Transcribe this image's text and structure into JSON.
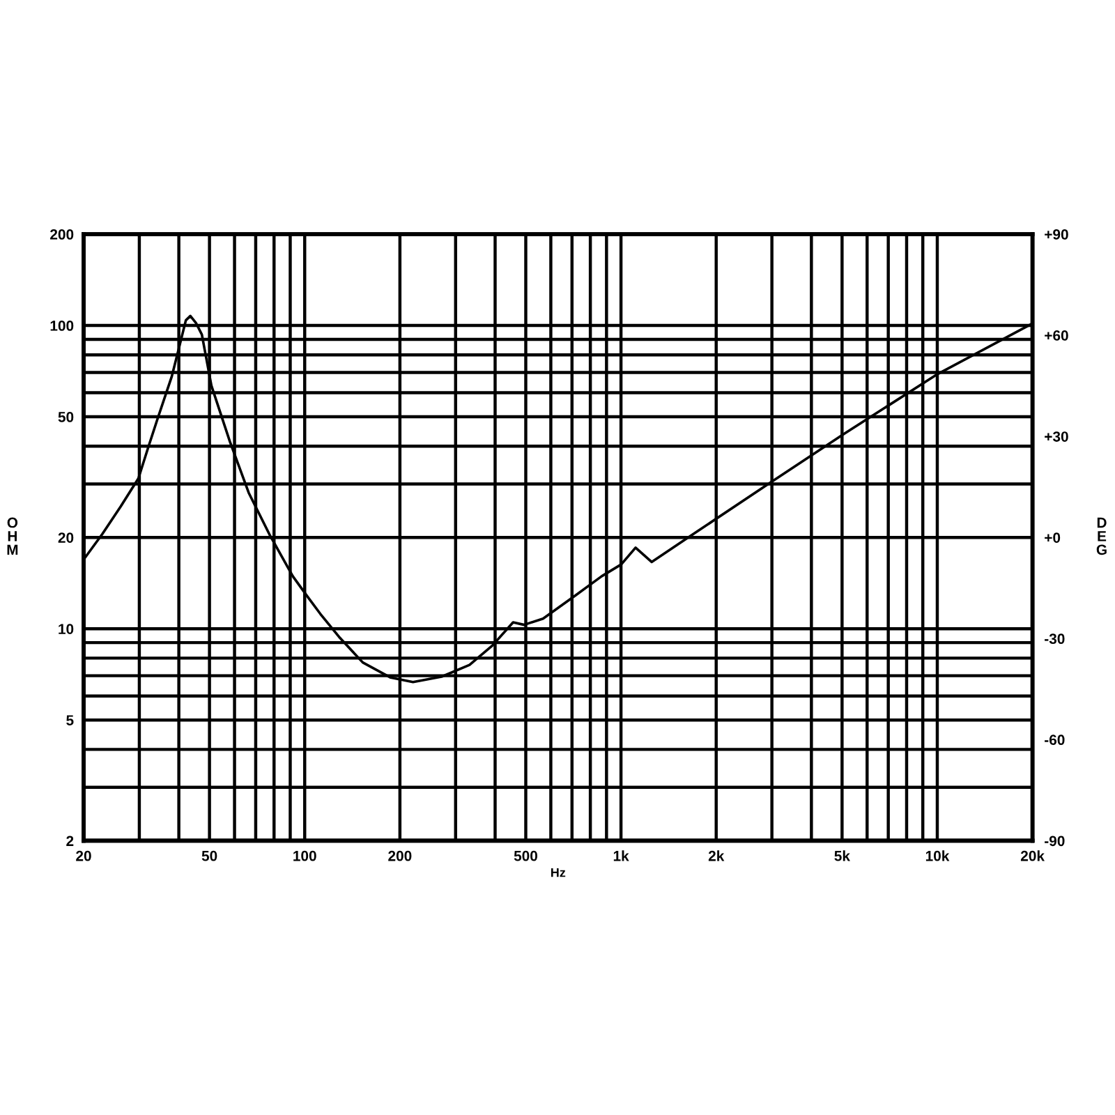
{
  "chart_data": {
    "type": "line",
    "xlabel": "Hz",
    "ylabel": "OHM",
    "y2label": "DEG",
    "log": "xy",
    "xlim": [
      20,
      20000
    ],
    "ylim": [
      2,
      200
    ],
    "y2lim": [
      -90,
      90
    ],
    "xticks": [
      20,
      {
        "value": 30,
        "label": null
      },
      {
        "value": 40,
        "label": null
      },
      50,
      {
        "value": 60,
        "label": null
      },
      {
        "value": 70,
        "label": null
      },
      {
        "value": 80,
        "label": null
      },
      {
        "value": 90,
        "label": null
      },
      100,
      200,
      {
        "value": 300,
        "label": null
      },
      {
        "value": 400,
        "label": null
      },
      500,
      {
        "value": 600,
        "label": null
      },
      {
        "value": 700,
        "label": null
      },
      {
        "value": 800,
        "label": null
      },
      {
        "value": 900,
        "label": null
      },
      {
        "value": 1000,
        "label": "1k"
      },
      {
        "value": 2000,
        "label": "2k"
      },
      {
        "value": 3000,
        "label": null
      },
      {
        "value": 4000,
        "label": null
      },
      {
        "value": 5000,
        "label": "5k"
      },
      {
        "value": 6000,
        "label": null
      },
      {
        "value": 7000,
        "label": null
      },
      {
        "value": 8000,
        "label": null
      },
      {
        "value": 9000,
        "label": null
      },
      {
        "value": 10000,
        "label": "10k"
      },
      {
        "value": 20000,
        "label": "20k"
      }
    ],
    "yticks": [
      2,
      {
        "value": 3,
        "label": null
      },
      {
        "value": 4,
        "label": null
      },
      5,
      {
        "value": 6,
        "label": null
      },
      {
        "value": 7,
        "label": null
      },
      {
        "value": 8,
        "label": null
      },
      {
        "value": 9,
        "label": null
      },
      10,
      20,
      {
        "value": 30,
        "label": null
      },
      {
        "value": 40,
        "label": null
      },
      50,
      {
        "value": 60,
        "label": null
      },
      {
        "value": 70,
        "label": null
      },
      {
        "value": 80,
        "label": null
      },
      {
        "value": 90,
        "label": null
      },
      100,
      200
    ],
    "y2ticks": [
      {
        "value": -90,
        "label": "-90"
      },
      {
        "value": -60,
        "label": "-60"
      },
      {
        "value": -30,
        "label": "-30"
      },
      {
        "value": 0,
        "label": "+0"
      },
      {
        "value": 30,
        "label": "+30"
      },
      {
        "value": 60,
        "label": "+60"
      },
      {
        "value": 90,
        "label": "+90"
      }
    ],
    "grid": true,
    "legend": false,
    "marker": "none",
    "line_style": "solid",
    "series": [
      {
        "color": "#000000",
        "x": [
          20,
          22.9,
          26.2,
          29.8,
          32.1,
          34.3,
          38,
          40,
          42.1,
          43.5,
          45.3,
          47.3,
          50.7,
          58,
          66.5,
          77.3,
          91.7,
          101.3,
          112,
          128.3,
          152.6,
          187,
          220,
          271,
          332,
          392,
          456,
          494,
          567,
          720,
          869,
          1002,
          1112,
          1250,
          1726,
          3018,
          5036,
          10040,
          20000
        ],
        "values": [
          16.9,
          20.5,
          25.3,
          31.3,
          40,
          49.4,
          67.9,
          84,
          104,
          107.5,
          102,
          93.3,
          63.3,
          41.4,
          28.1,
          20.5,
          14.9,
          12.9,
          11.2,
          9.41,
          7.74,
          6.9,
          6.67,
          6.95,
          7.6,
          8.8,
          10.5,
          10.3,
          10.8,
          12.9,
          14.9,
          16.3,
          18.5,
          16.6,
          20.8,
          30.7,
          43.7,
          69.2,
          101.5
        ]
      }
    ]
  }
}
